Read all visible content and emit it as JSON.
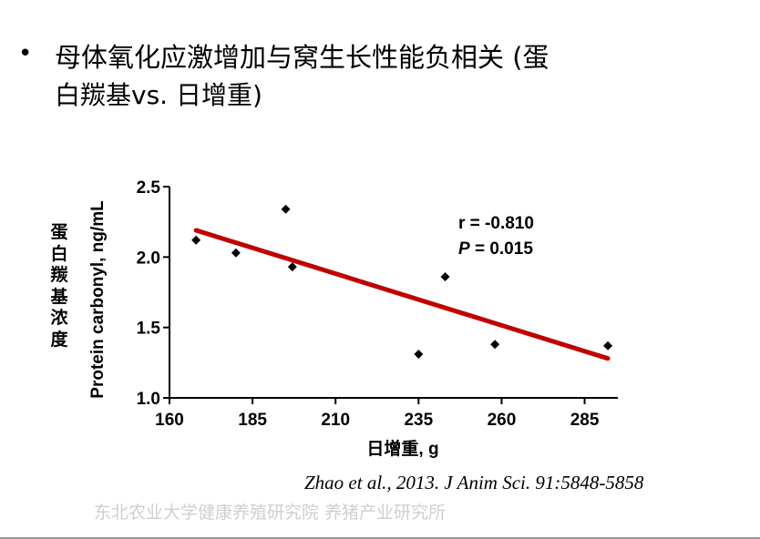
{
  "slide": {
    "bullet_symbol": "•",
    "bullet_line1": "母体氧化应激增加与窝生长性能负相关 (蛋",
    "bullet_line2": "白羰基vs. 日增重)",
    "citation": "Zhao et al., 2013. J Anim Sci. 91:5848-5858",
    "watermark": "东北农业大学健康养殖研究院 养猪产业研究所",
    "ylabel_cn": "蛋白羰基浓度"
  },
  "chart_data": {
    "type": "scatter",
    "title": "",
    "xlabel": "日增重, g",
    "ylabel": "Protein carbonyl, ng/mL",
    "xlim": [
      160,
      295
    ],
    "ylim": [
      1.0,
      2.5
    ],
    "xticks": [
      160,
      185,
      210,
      235,
      260,
      285
    ],
    "yticks": [
      1.0,
      1.5,
      2.0,
      2.5
    ],
    "ytick_labels": [
      "1.0",
      "1.5",
      "2.0",
      "2.5"
    ],
    "grid": false,
    "legend": "none",
    "points": [
      {
        "x": 168,
        "y": 2.12
      },
      {
        "x": 180,
        "y": 2.03
      },
      {
        "x": 195,
        "y": 2.34
      },
      {
        "x": 197,
        "y": 1.93
      },
      {
        "x": 235,
        "y": 1.31
      },
      {
        "x": 243,
        "y": 1.86
      },
      {
        "x": 258,
        "y": 1.38
      },
      {
        "x": 292,
        "y": 1.37
      }
    ],
    "regression": {
      "x1": 168,
      "y1": 2.19,
      "x2": 292,
      "y2": 1.28,
      "color": "#c00000"
    },
    "annotation": {
      "r_text": "r = -0.810",
      "p_label": "P",
      "p_text": " = 0.015"
    },
    "marker_color": "#000000"
  }
}
